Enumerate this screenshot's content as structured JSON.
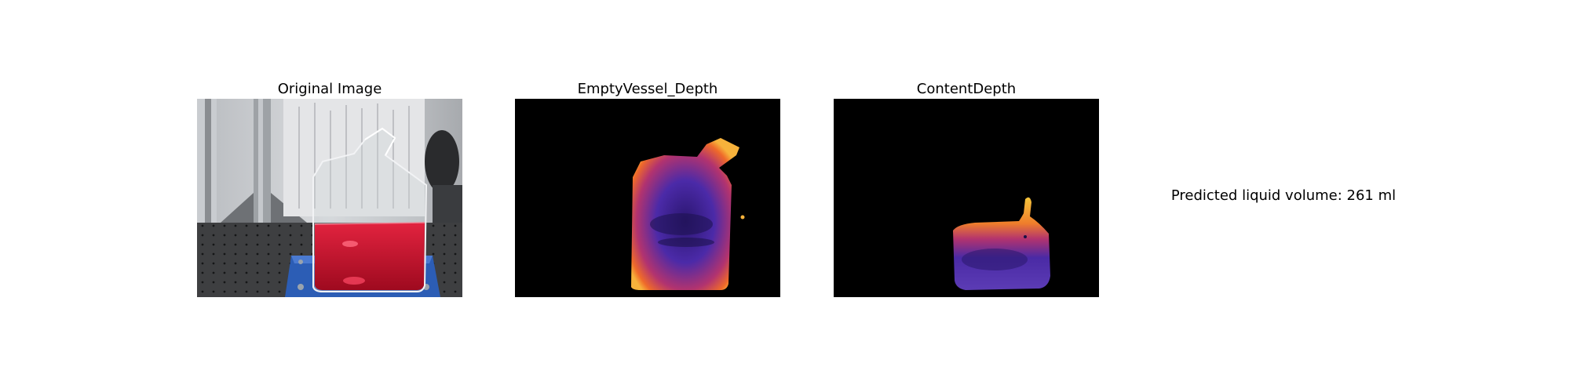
{
  "panels": [
    {
      "title": "Original Image"
    },
    {
      "title": "EmptyVessel_Depth"
    },
    {
      "title": "ContentDepth"
    }
  ],
  "result": {
    "text": "Predicted liquid volume: 261 ml"
  },
  "colors": {
    "background": "#ffffff",
    "depth_background": "#000000",
    "liquid": "#d4102c",
    "depth_low": "#3a1f8f",
    "depth_mid": "#c23b6b",
    "depth_high": "#f5c63a",
    "stand_blue": "#2c5db5"
  }
}
